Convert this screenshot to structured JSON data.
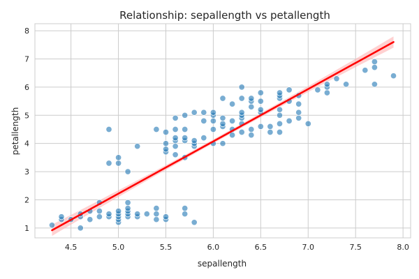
{
  "chart_data": {
    "type": "scatter",
    "title": "Relationship: sepallength vs petallength",
    "xlabel": "sepallength",
    "ylabel": "petallength",
    "xlim": [
      4.12,
      8.08
    ],
    "ylim": [
      0.65,
      8.25
    ],
    "x_ticks": [
      "4.5",
      "5.0",
      "5.5",
      "6.0",
      "6.5",
      "7.0",
      "7.5",
      "8.0"
    ],
    "y_ticks": [
      "1",
      "2",
      "3",
      "4",
      "5",
      "6",
      "7",
      "8"
    ],
    "grid": true,
    "colors": {
      "points": "#1f77b4",
      "regression_line": "#ff0000",
      "confidence_band": "#ffb3b3"
    },
    "regression": {
      "x": [
        4.3,
        7.9
      ],
      "y": [
        0.92,
        7.6
      ],
      "band_halfwidth_ends": 0.2,
      "band_halfwidth_center": 0.07
    },
    "points": [
      [
        4.3,
        1.1
      ],
      [
        4.4,
        1.3
      ],
      [
        4.4,
        1.4
      ],
      [
        4.5,
        1.3
      ],
      [
        4.6,
        1.0
      ],
      [
        4.6,
        1.4
      ],
      [
        4.6,
        1.5
      ],
      [
        4.7,
        1.3
      ],
      [
        4.7,
        1.6
      ],
      [
        4.8,
        1.4
      ],
      [
        4.8,
        1.6
      ],
      [
        4.8,
        1.9
      ],
      [
        4.9,
        1.4
      ],
      [
        4.9,
        1.5
      ],
      [
        4.9,
        3.3
      ],
      [
        4.9,
        4.5
      ],
      [
        5.0,
        1.2
      ],
      [
        5.0,
        1.3
      ],
      [
        5.0,
        1.4
      ],
      [
        5.0,
        1.5
      ],
      [
        5.0,
        1.6
      ],
      [
        5.0,
        3.3
      ],
      [
        5.0,
        3.5
      ],
      [
        5.1,
        1.4
      ],
      [
        5.1,
        1.5
      ],
      [
        5.1,
        1.6
      ],
      [
        5.1,
        1.7
      ],
      [
        5.1,
        1.9
      ],
      [
        5.1,
        3.0
      ],
      [
        5.2,
        1.4
      ],
      [
        5.2,
        1.5
      ],
      [
        5.2,
        3.9
      ],
      [
        5.3,
        1.5
      ],
      [
        5.4,
        1.3
      ],
      [
        5.4,
        1.5
      ],
      [
        5.4,
        1.7
      ],
      [
        5.4,
        4.5
      ],
      [
        5.5,
        1.3
      ],
      [
        5.5,
        1.4
      ],
      [
        5.5,
        3.7
      ],
      [
        5.5,
        3.8
      ],
      [
        5.5,
        4.0
      ],
      [
        5.5,
        4.4
      ],
      [
        5.6,
        3.6
      ],
      [
        5.6,
        3.9
      ],
      [
        5.6,
        4.1
      ],
      [
        5.6,
        4.2
      ],
      [
        5.6,
        4.5
      ],
      [
        5.6,
        4.9
      ],
      [
        5.7,
        1.5
      ],
      [
        5.7,
        1.7
      ],
      [
        5.7,
        3.5
      ],
      [
        5.7,
        4.1
      ],
      [
        5.7,
        4.2
      ],
      [
        5.7,
        4.5
      ],
      [
        5.7,
        5.0
      ],
      [
        5.8,
        1.2
      ],
      [
        5.8,
        3.9
      ],
      [
        5.8,
        4.0
      ],
      [
        5.8,
        4.1
      ],
      [
        5.8,
        5.1
      ],
      [
        5.9,
        4.2
      ],
      [
        5.9,
        4.8
      ],
      [
        5.9,
        5.1
      ],
      [
        6.0,
        4.0
      ],
      [
        6.0,
        4.5
      ],
      [
        6.0,
        4.8
      ],
      [
        6.0,
        5.0
      ],
      [
        6.0,
        5.1
      ],
      [
        6.1,
        4.0
      ],
      [
        6.1,
        4.6
      ],
      [
        6.1,
        4.7
      ],
      [
        6.1,
        4.9
      ],
      [
        6.1,
        5.6
      ],
      [
        6.2,
        4.3
      ],
      [
        6.2,
        4.5
      ],
      [
        6.2,
        4.8
      ],
      [
        6.2,
        5.4
      ],
      [
        6.3,
        4.4
      ],
      [
        6.3,
        4.7
      ],
      [
        6.3,
        4.9
      ],
      [
        6.3,
        5.0
      ],
      [
        6.3,
        5.1
      ],
      [
        6.3,
        5.6
      ],
      [
        6.3,
        6.0
      ],
      [
        6.4,
        4.3
      ],
      [
        6.4,
        4.5
      ],
      [
        6.4,
        5.3
      ],
      [
        6.4,
        5.5
      ],
      [
        6.4,
        5.6
      ],
      [
        6.5,
        4.6
      ],
      [
        6.5,
        5.1
      ],
      [
        6.5,
        5.2
      ],
      [
        6.5,
        5.5
      ],
      [
        6.5,
        5.8
      ],
      [
        6.6,
        4.4
      ],
      [
        6.6,
        4.6
      ],
      [
        6.7,
        4.4
      ],
      [
        6.7,
        4.7
      ],
      [
        6.7,
        5.0
      ],
      [
        6.7,
        5.2
      ],
      [
        6.7,
        5.6
      ],
      [
        6.7,
        5.7
      ],
      [
        6.7,
        5.8
      ],
      [
        6.8,
        4.8
      ],
      [
        6.8,
        5.5
      ],
      [
        6.8,
        5.9
      ],
      [
        6.9,
        4.9
      ],
      [
        6.9,
        5.1
      ],
      [
        6.9,
        5.4
      ],
      [
        6.9,
        5.7
      ],
      [
        7.0,
        4.7
      ],
      [
        7.1,
        5.9
      ],
      [
        7.2,
        5.8
      ],
      [
        7.2,
        6.0
      ],
      [
        7.2,
        6.1
      ],
      [
        7.3,
        6.3
      ],
      [
        7.4,
        6.1
      ],
      [
        7.6,
        6.6
      ],
      [
        7.7,
        6.1
      ],
      [
        7.7,
        6.7
      ],
      [
        7.7,
        6.9
      ],
      [
        7.9,
        6.4
      ]
    ]
  }
}
